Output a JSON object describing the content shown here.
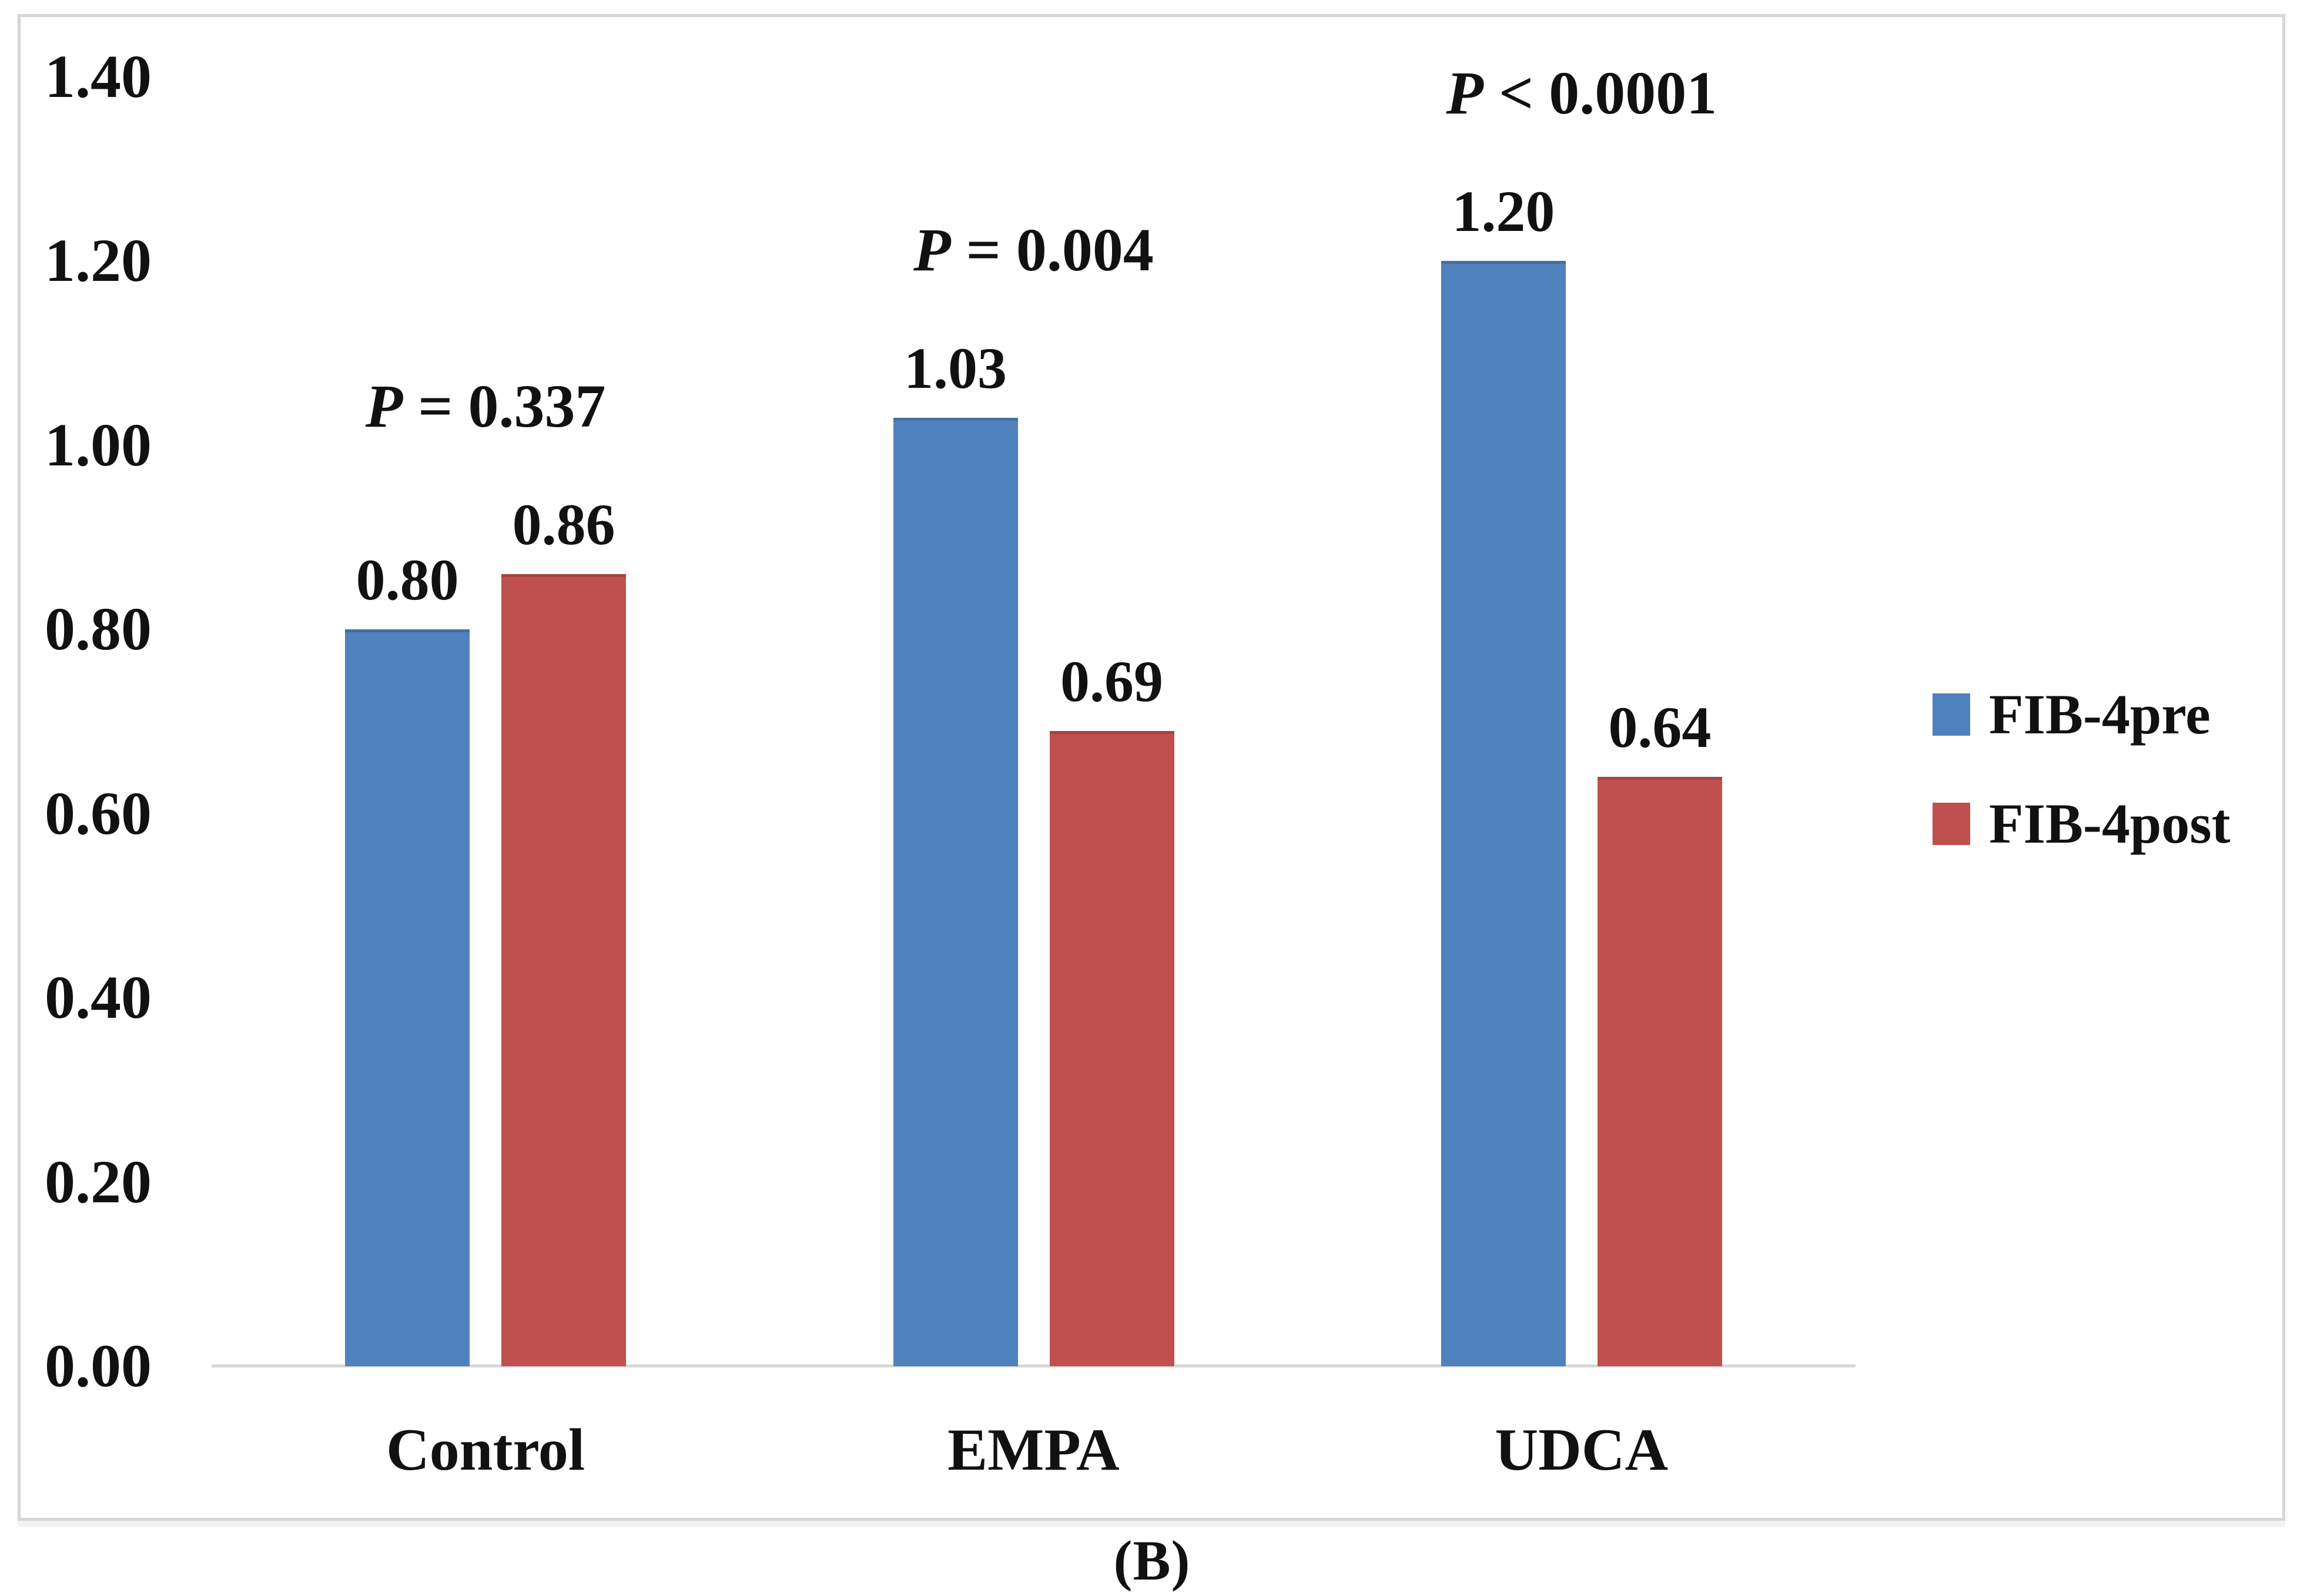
{
  "figure": {
    "caption": "(B)"
  },
  "legend": {
    "position": "right",
    "items": [
      {
        "label": "FIB-4pre",
        "color": "#4F81BD"
      },
      {
        "label": "FIB-4post",
        "color": "#C0504D"
      }
    ]
  },
  "chart_data": {
    "type": "bar",
    "title": "",
    "xlabel": "",
    "ylabel": "",
    "categories": [
      "Control",
      "EMPA",
      "UDCA"
    ],
    "series": [
      {
        "name": "FIB-4pre",
        "color": "#4F81BD",
        "values": [
          0.8,
          1.03,
          1.2
        ]
      },
      {
        "name": "FIB-4post",
        "color": "#C0504D",
        "values": [
          0.86,
          0.69,
          0.64
        ]
      }
    ],
    "value_labels": [
      [
        "0.80",
        "1.03",
        "1.20"
      ],
      [
        "0.86",
        "0.69",
        "0.64"
      ]
    ],
    "p_value_labels": [
      "P = 0.337",
      "P = 0.004",
      "P < 0.0001"
    ],
    "ylim": [
      0.0,
      1.4
    ],
    "ytick_step": 0.2,
    "ytick_labels": [
      "0.00",
      "0.20",
      "0.40",
      "0.60",
      "0.80",
      "1.00",
      "1.20",
      "1.40"
    ],
    "grid": false,
    "legend_position": "right",
    "axis_color": "#D8D8D8",
    "text_color": "#111111"
  }
}
